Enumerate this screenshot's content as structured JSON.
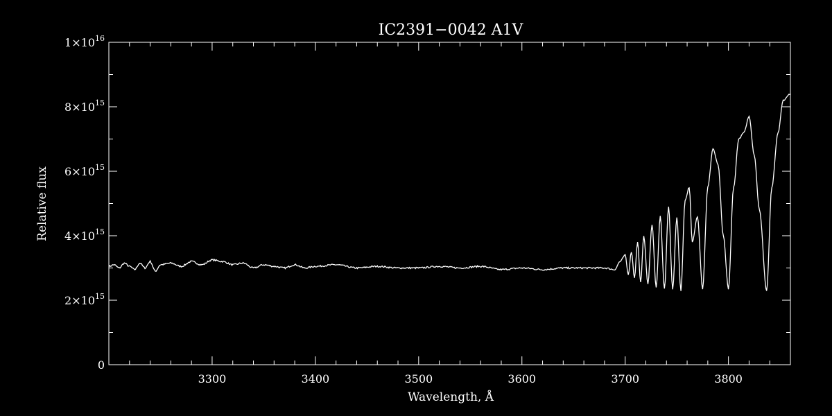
{
  "chart_data": {
    "type": "line",
    "title": "IC2391−0042  A1V",
    "xlabel": "Wavelength, Å",
    "ylabel": "Relative flux",
    "xlim": [
      3200,
      3860
    ],
    "ylim": [
      0,
      1e+16
    ],
    "x_ticks": [
      {
        "value": 3300,
        "label": "3300"
      },
      {
        "value": 3400,
        "label": "3400"
      },
      {
        "value": 3500,
        "label": "3500"
      },
      {
        "value": 3600,
        "label": "3600"
      },
      {
        "value": 3700,
        "label": "3700"
      },
      {
        "value": 3800,
        "label": "3800"
      }
    ],
    "y_ticks": [
      {
        "value": 0,
        "mantissa": "0",
        "exponent": ""
      },
      {
        "value": 2000000000000000.0,
        "mantissa": "2×10",
        "exponent": "15"
      },
      {
        "value": 4000000000000000.0,
        "mantissa": "4×10",
        "exponent": "15"
      },
      {
        "value": 6000000000000000.0,
        "mantissa": "6×10",
        "exponent": "15"
      },
      {
        "value": 8000000000000000.0,
        "mantissa": "8×10",
        "exponent": "15"
      },
      {
        "value": 1e+16,
        "mantissa": "1×10",
        "exponent": "16"
      }
    ],
    "x_minor_step": 20,
    "y_minor_step": 1000000000000000.0,
    "grid": false,
    "colors": {
      "background": "#000000",
      "foreground": "#ffffff"
    },
    "series": [
      {
        "x": [
          3200,
          3205,
          3210,
          3215,
          3220,
          3225,
          3230,
          3235,
          3240,
          3245,
          3250,
          3260,
          3270,
          3280,
          3290,
          3300,
          3310,
          3320,
          3330,
          3340,
          3350,
          3360,
          3370,
          3380,
          3390,
          3400,
          3420,
          3440,
          3460,
          3480,
          3500,
          3520,
          3540,
          3560,
          3580,
          3600,
          3620,
          3640,
          3660,
          3680,
          3690,
          3695,
          3700,
          3703,
          3706,
          3709,
          3712,
          3715,
          3718,
          3722,
          3726,
          3730,
          3734,
          3738,
          3742,
          3746,
          3750,
          3754,
          3758,
          3762,
          3765,
          3770,
          3775,
          3780,
          3785,
          3790,
          3795,
          3800,
          3805,
          3810,
          3815,
          3820,
          3825,
          3830,
          3837,
          3842,
          3848,
          3853,
          3860
        ],
        "y": [
          3050000000000000.0,
          3100000000000000.0,
          3000000000000000.0,
          3150000000000000.0,
          3050000000000000.0,
          2950000000000000.0,
          3150000000000000.0,
          3000000000000000.0,
          3200000000000000.0,
          2900000000000000.0,
          3100000000000000.0,
          3150000000000000.0,
          3050000000000000.0,
          3200000000000000.0,
          3100000000000000.0,
          3250000000000000.0,
          3200000000000000.0,
          3100000000000000.0,
          3150000000000000.0,
          3000000000000000.0,
          3100000000000000.0,
          3050000000000000.0,
          3000000000000000.0,
          3100000000000000.0,
          3000000000000000.0,
          3050000000000000.0,
          3100000000000000.0,
          3000000000000000.0,
          3050000000000000.0,
          3000000000000000.0,
          3000000000000000.0,
          3050000000000000.0,
          3000000000000000.0,
          3050000000000000.0,
          2950000000000000.0,
          3000000000000000.0,
          2950000000000000.0,
          3000000000000000.0,
          3000000000000000.0,
          3000000000000000.0,
          2950000000000000.0,
          3200000000000000.0,
          3400000000000000.0,
          2800000000000000.0,
          3500000000000000.0,
          2700000000000000.0,
          3800000000000000.0,
          2550000000000000.0,
          4000000000000000.0,
          2500000000000000.0,
          4350000000000000.0,
          2400000000000000.0,
          4600000000000000.0,
          2350000000000000.0,
          4900000000000000.0,
          2350000000000000.0,
          4550000000000000.0,
          2300000000000000.0,
          5100000000000000.0,
          5500000000000000.0,
          3800000000000000.0,
          4600000000000000.0,
          2350000000000000.0,
          5500000000000000.0,
          6700000000000000.0,
          6200000000000000.0,
          4000000000000000.0,
          2350000000000000.0,
          5500000000000000.0,
          7000000000000000.0,
          7200000000000000.0,
          7700000000000000.0,
          6500000000000000.0,
          4800000000000000.0,
          2300000000000000.0,
          5500000000000000.0,
          7200000000000000.0,
          8200000000000000.0,
          8400000000000000.0
        ]
      }
    ]
  }
}
